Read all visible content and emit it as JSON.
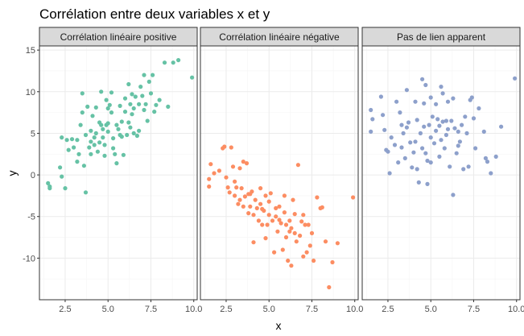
{
  "chart_data": {
    "type": "scatter",
    "title": "Corrélation entre deux variables x et y",
    "xlabel": "x",
    "ylabel": "y",
    "xlim": [
      1,
      10.2
    ],
    "ylim": [
      -15,
      15.5
    ],
    "x_ticks": [
      2.5,
      5.0,
      7.5,
      10.0
    ],
    "x_tick_labels": [
      "2.5",
      "5.0",
      "7.5",
      "10.0"
    ],
    "y_ticks": [
      -10,
      -5,
      0,
      5,
      10,
      15
    ],
    "y_tick_labels": [
      "-10",
      "-5",
      "0",
      "5",
      "10",
      "15"
    ],
    "grid": true,
    "legend": "none",
    "panels": [
      {
        "name": "Corrélation linéaire positive",
        "color": "#66c2a5",
        "points": [
          [
            1.5,
            -1.0
          ],
          [
            1.6,
            -1.4
          ],
          [
            1.6,
            -1.6
          ],
          [
            2.2,
            0.9
          ],
          [
            2.3,
            -0.2
          ],
          [
            2.3,
            4.5
          ],
          [
            2.5,
            -1.6
          ],
          [
            2.6,
            4.2
          ],
          [
            2.7,
            3.0
          ],
          [
            2.9,
            4.3
          ],
          [
            3.0,
            3.3
          ],
          [
            3.2,
            4.2
          ],
          [
            3.2,
            1.6
          ],
          [
            3.3,
            2.5
          ],
          [
            3.4,
            6.0
          ],
          [
            3.5,
            7.5
          ],
          [
            3.5,
            9.8
          ],
          [
            3.6,
            1.1
          ],
          [
            3.7,
            -2.1
          ],
          [
            3.7,
            4.8
          ],
          [
            3.8,
            8.2
          ],
          [
            3.9,
            3.3
          ],
          [
            4.0,
            2.5
          ],
          [
            4.0,
            4.0
          ],
          [
            4.0,
            5.3
          ],
          [
            4.1,
            7.1
          ],
          [
            4.2,
            3.6
          ],
          [
            4.3,
            5.0
          ],
          [
            4.3,
            8.1
          ],
          [
            4.4,
            2.8
          ],
          [
            4.5,
            6.3
          ],
          [
            4.5,
            3.9
          ],
          [
            4.6,
            10.0
          ],
          [
            4.6,
            6.0
          ],
          [
            4.7,
            4.5
          ],
          [
            4.7,
            5.5
          ],
          [
            4.8,
            2.3
          ],
          [
            4.8,
            3.6
          ],
          [
            4.9,
            6.0
          ],
          [
            4.9,
            9.0
          ],
          [
            5.0,
            5.2
          ],
          [
            5.0,
            6.2
          ],
          [
            5.1,
            8.4
          ],
          [
            5.2,
            9.9
          ],
          [
            5.2,
            7.5
          ],
          [
            5.3,
            3.2
          ],
          [
            5.3,
            4.4
          ],
          [
            5.4,
            2.5
          ],
          [
            5.5,
            1.4
          ],
          [
            5.5,
            6.0
          ],
          [
            5.6,
            5.5
          ],
          [
            5.7,
            8.3
          ],
          [
            5.8,
            4.6
          ],
          [
            5.8,
            6.4
          ],
          [
            5.9,
            2.4
          ],
          [
            6.0,
            9.2
          ],
          [
            6.0,
            7.6
          ],
          [
            6.1,
            4.8
          ],
          [
            6.2,
            6.3
          ],
          [
            6.2,
            10.9
          ],
          [
            6.3,
            8.5
          ],
          [
            6.4,
            7.3
          ],
          [
            6.4,
            9.7
          ],
          [
            6.5,
            8.0
          ],
          [
            6.5,
            5.0
          ],
          [
            6.6,
            9.4
          ],
          [
            6.7,
            4.7
          ],
          [
            6.8,
            8.5
          ],
          [
            6.9,
            10.6
          ],
          [
            7.0,
            9.5
          ],
          [
            7.1,
            7.8
          ],
          [
            7.1,
            12.0
          ],
          [
            7.2,
            8.5
          ],
          [
            7.3,
            6.5
          ],
          [
            7.4,
            11.2
          ],
          [
            7.5,
            9.8
          ],
          [
            7.6,
            12.0
          ],
          [
            7.7,
            7.6
          ],
          [
            7.8,
            8.4
          ],
          [
            8.0,
            9.0
          ],
          [
            8.3,
            13.5
          ],
          [
            8.5,
            8.2
          ],
          [
            8.8,
            13.5
          ],
          [
            9.1,
            13.8
          ],
          [
            9.9,
            11.7
          ],
          [
            6.8,
            5.3
          ],
          [
            5.7,
            4.8
          ],
          [
            4.2,
            4.5
          ],
          [
            6.3,
            5.7
          ],
          [
            5.0,
            8.0
          ]
        ]
      },
      {
        "name": "Corrélation linéaire négative",
        "color": "#fc8d62",
        "points": [
          [
            1.5,
            -0.5
          ],
          [
            1.5,
            -1.4
          ],
          [
            1.6,
            1.3
          ],
          [
            1.8,
            0.2
          ],
          [
            2.1,
            0.5
          ],
          [
            2.3,
            3.2
          ],
          [
            2.4,
            3.4
          ],
          [
            2.5,
            -0.3
          ],
          [
            2.6,
            -1.5
          ],
          [
            2.7,
            -2.1
          ],
          [
            2.8,
            3.3
          ],
          [
            2.9,
            1.0
          ],
          [
            3.0,
            -0.8
          ],
          [
            3.0,
            -2.5
          ],
          [
            3.1,
            -1.5
          ],
          [
            3.2,
            -3.5
          ],
          [
            3.3,
            -3.0
          ],
          [
            3.3,
            0.8
          ],
          [
            3.4,
            -1.6
          ],
          [
            3.5,
            1.6
          ],
          [
            3.5,
            -3.8
          ],
          [
            3.6,
            -2.6
          ],
          [
            3.7,
            1.4
          ],
          [
            3.8,
            -2.3
          ],
          [
            3.8,
            -4.6
          ],
          [
            3.9,
            -3.8
          ],
          [
            4.0,
            -2.0
          ],
          [
            4.1,
            -4.8
          ],
          [
            4.1,
            -8.1
          ],
          [
            4.2,
            -3.0
          ],
          [
            4.3,
            -4.0
          ],
          [
            4.4,
            -5.5
          ],
          [
            4.5,
            -1.6
          ],
          [
            4.5,
            -3.5
          ],
          [
            4.6,
            -6.0
          ],
          [
            4.7,
            -4.3
          ],
          [
            4.8,
            -2.5
          ],
          [
            4.8,
            -7.6
          ],
          [
            4.9,
            -6.0
          ],
          [
            5.0,
            -4.8
          ],
          [
            5.0,
            -3.2
          ],
          [
            5.1,
            -2.2
          ],
          [
            5.2,
            -5.5
          ],
          [
            5.3,
            -9.3
          ],
          [
            5.4,
            -4.0
          ],
          [
            5.4,
            -5.0
          ],
          [
            5.5,
            -6.8
          ],
          [
            5.6,
            -3.8
          ],
          [
            5.7,
            -5.8
          ],
          [
            5.8,
            -9.0
          ],
          [
            5.9,
            -2.5
          ],
          [
            5.9,
            -4.5
          ],
          [
            6.0,
            -7.5
          ],
          [
            6.0,
            -6.0
          ],
          [
            6.1,
            -10.3
          ],
          [
            6.2,
            -5.5
          ],
          [
            6.2,
            -6.8
          ],
          [
            6.3,
            -10.9
          ],
          [
            6.4,
            -3.0
          ],
          [
            6.5,
            -7.0
          ],
          [
            6.6,
            -8.0
          ],
          [
            6.7,
            1.2
          ],
          [
            6.8,
            -7.3
          ],
          [
            6.9,
            -5.6
          ],
          [
            7.0,
            -9.8
          ],
          [
            7.0,
            -4.8
          ],
          [
            7.1,
            -6.0
          ],
          [
            7.2,
            -9.3
          ],
          [
            7.3,
            -6.0
          ],
          [
            7.4,
            -8.5
          ],
          [
            7.5,
            -7.0
          ],
          [
            7.6,
            -10.3
          ],
          [
            7.8,
            -2.7
          ],
          [
            8.0,
            -4.0
          ],
          [
            8.1,
            -3.9
          ],
          [
            8.3,
            -8.0
          ],
          [
            8.5,
            -13.5
          ],
          [
            8.7,
            -10.5
          ],
          [
            9.0,
            -8.2
          ],
          [
            9.9,
            -2.7
          ],
          [
            6.5,
            -4.7
          ],
          [
            5.6,
            -5.4
          ],
          [
            4.6,
            -4.1
          ],
          [
            3.9,
            -2.3
          ],
          [
            6.3,
            -6.4
          ]
        ]
      },
      {
        "name": "Pas de lien apparent",
        "color": "#8da0cb",
        "points": [
          [
            1.5,
            7.8
          ],
          [
            1.5,
            5.2
          ],
          [
            1.6,
            6.7
          ],
          [
            2.1,
            9.4
          ],
          [
            2.2,
            7.2
          ],
          [
            2.3,
            5.4
          ],
          [
            2.4,
            3.0
          ],
          [
            2.5,
            2.8
          ],
          [
            2.6,
            0.2
          ],
          [
            2.7,
            4.5
          ],
          [
            2.9,
            3.6
          ],
          [
            3.0,
            8.8
          ],
          [
            3.1,
            1.5
          ],
          [
            3.3,
            6.0
          ],
          [
            3.3,
            3.3
          ],
          [
            3.4,
            5.0
          ],
          [
            3.5,
            2.0
          ],
          [
            3.6,
            5.7
          ],
          [
            3.6,
            10.2
          ],
          [
            3.7,
            6.3
          ],
          [
            3.8,
            3.9
          ],
          [
            3.9,
            0.9
          ],
          [
            4.0,
            2.7
          ],
          [
            4.1,
            8.8
          ],
          [
            4.1,
            4.0
          ],
          [
            4.2,
            0.7
          ],
          [
            4.3,
            -0.9
          ],
          [
            4.4,
            5.0
          ],
          [
            4.5,
            3.2
          ],
          [
            4.5,
            11.5
          ],
          [
            4.6,
            8.6
          ],
          [
            4.6,
            5.8
          ],
          [
            4.7,
            2.6
          ],
          [
            4.7,
            10.8
          ],
          [
            4.8,
            1.7
          ],
          [
            4.8,
            -1.1
          ],
          [
            4.9,
            6.0
          ],
          [
            5.0,
            9.3
          ],
          [
            5.0,
            4.5
          ],
          [
            5.1,
            7.0
          ],
          [
            5.2,
            3.8
          ],
          [
            5.3,
            5.3
          ],
          [
            5.3,
            8.5
          ],
          [
            5.4,
            6.7
          ],
          [
            5.5,
            2.2
          ],
          [
            5.6,
            10.6
          ],
          [
            5.6,
            4.2
          ],
          [
            5.7,
            6.4
          ],
          [
            5.7,
            9.8
          ],
          [
            5.8,
            3.2
          ],
          [
            5.9,
            6.5
          ],
          [
            6.0,
            5.5
          ],
          [
            6.0,
            8.8
          ],
          [
            6.1,
            1.0
          ],
          [
            6.2,
            6.5
          ],
          [
            6.3,
            -2.4
          ],
          [
            6.3,
            9.2
          ],
          [
            6.4,
            5.6
          ],
          [
            6.5,
            2.6
          ],
          [
            6.6,
            5.2
          ],
          [
            6.7,
            4.0
          ],
          [
            6.8,
            6.0
          ],
          [
            6.9,
            0.7
          ],
          [
            7.0,
            7.0
          ],
          [
            7.1,
            5.0
          ],
          [
            7.2,
            1.0
          ],
          [
            7.3,
            9.0
          ],
          [
            7.4,
            9.3
          ],
          [
            7.5,
            6.8
          ],
          [
            7.6,
            3.2
          ],
          [
            8.1,
            5.2
          ],
          [
            8.2,
            2.0
          ],
          [
            8.3,
            1.6
          ],
          [
            8.5,
            0.2
          ],
          [
            8.8,
            2.2
          ],
          [
            9.1,
            5.8
          ],
          [
            9.9,
            11.6
          ],
          [
            5.5,
            5.9
          ],
          [
            6.6,
            3.5
          ],
          [
            4.2,
            6.6
          ],
          [
            5.9,
            4.8
          ],
          [
            3.2,
            7.5
          ],
          [
            7.8,
            8.0
          ],
          [
            5.0,
            1.5
          ]
        ]
      }
    ]
  }
}
